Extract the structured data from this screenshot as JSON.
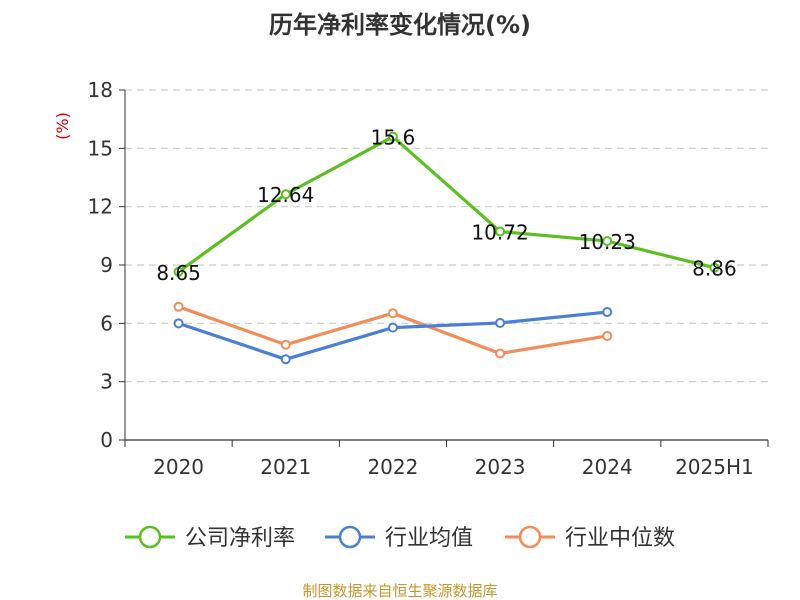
{
  "chart_data": {
    "type": "line",
    "title": "历年净利率变化情况(%)",
    "ylabel": "(%)",
    "xlabel": "",
    "categories": [
      "2020",
      "2021",
      "2022",
      "2023",
      "2024",
      "2025H1"
    ],
    "ylim": [
      0,
      18
    ],
    "yticks": [
      0,
      3,
      6,
      9,
      12,
      15,
      18
    ],
    "grid": "horizontal-dashed",
    "legend_position": "bottom",
    "series": [
      {
        "name": "公司净利率",
        "color": "#5bbf21",
        "values": [
          8.65,
          12.64,
          15.6,
          10.72,
          10.23,
          8.86
        ],
        "labels": [
          "8.65",
          "12.64",
          "15.6",
          "10.72",
          "10.23",
          "8.86"
        ]
      },
      {
        "name": "行业均值",
        "color": "#4a7fd6",
        "values": [
          6.0,
          4.15,
          5.78,
          6.02,
          6.58,
          null
        ]
      },
      {
        "name": "行业中位数",
        "color": "#f28c5a",
        "values": [
          6.85,
          4.9,
          6.52,
          4.45,
          5.35,
          null
        ]
      }
    ]
  },
  "footer": {
    "source": "制图数据来自恒生聚源数据库"
  }
}
